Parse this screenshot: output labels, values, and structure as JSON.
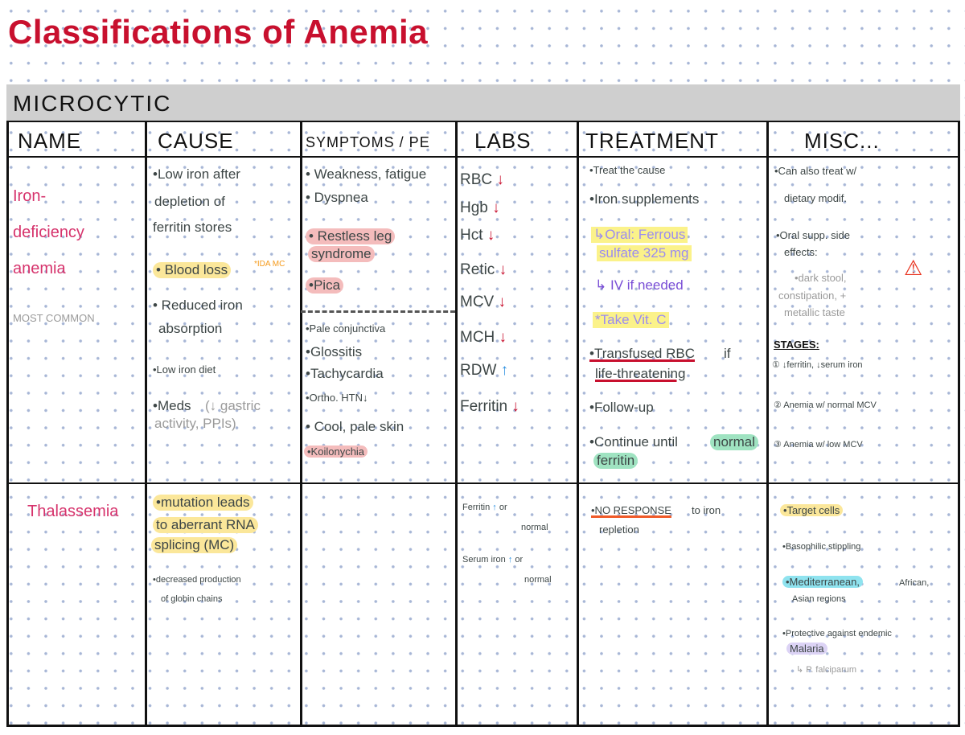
{
  "title": "Classifications of Anemia",
  "section": "MICROCYTIC",
  "headers": [
    "NAME",
    "CAUSE",
    "SYMPTOMS / PE",
    "LABS",
    "TREATMENT",
    "MISC..."
  ],
  "colors": {
    "title": "#c8102e",
    "name": "#d6336c",
    "down_arrow": "#c8102e",
    "up_arrow": "#2b8fe0",
    "dots": "#a7b6d6"
  },
  "rows": [
    {
      "name": [
        "Iron-",
        "deficiency",
        "anemia"
      ],
      "name_note": "MOST COMMON",
      "cause": [
        "•Low iron after",
        "depletion of",
        "ferritin stores",
        "• Blood loss",
        "*IDA MC",
        "• Reduced iron",
        "absorption",
        "•Low iron diet",
        "•Meds",
        "(↓ gastric",
        "activity, PPIs)"
      ],
      "symptoms": [
        "• Weakness, fatigue",
        "• Dyspnea",
        "• Restless leg",
        "syndrome",
        "•Pica",
        "•Pale conjunctiva",
        "•Glossitis",
        "•Tachycardia",
        "•Ortho. HTN↓",
        "• Cool, pale skin",
        "•Koilonychia"
      ],
      "labs": [
        {
          "name": "RBC",
          "trend": "down"
        },
        {
          "name": "Hgb",
          "trend": "down"
        },
        {
          "name": "Hct",
          "trend": "down"
        },
        {
          "name": "Retic",
          "trend": "down"
        },
        {
          "name": "MCV",
          "trend": "down"
        },
        {
          "name": "MCH",
          "trend": "down"
        },
        {
          "name": "RDW",
          "trend": "up"
        },
        {
          "name": "Ferritin",
          "trend": "down"
        }
      ],
      "treatment": [
        "•Treat the cause",
        "•Iron supplements",
        "↳Oral: Ferrous",
        "sulfate 325 mg",
        "↳ IV if needed",
        "*Take Vit. C",
        "•Transfused RBC",
        "if",
        "life-threatening",
        "•Follow-up",
        "•Continue until",
        "normal",
        "ferritin"
      ],
      "misc": [
        "•Can also treat w/",
        "dietary modif.",
        "•Oral supp. side",
        "effects:",
        "•dark stool,",
        "constipation, +",
        "metallic taste",
        "STAGES:",
        "① ↓ferritin, ↓serum iron",
        "② Anemia w/ normal MCV",
        "③ Anemia w/ low MCV"
      ],
      "warning_icon": "warning-triangle"
    },
    {
      "name": [
        "Thalassemia"
      ],
      "cause": [
        "•mutation leads",
        "to aberrant RNA",
        "splicing (MC)",
        "•decreased production",
        "of globin chains"
      ],
      "labs_lines": [
        {
          "name": "Ferritin",
          "trend": "up",
          "suffix": "or",
          "cont": "normal"
        },
        {
          "name": "Serum iron",
          "trend": "up",
          "suffix": "or",
          "cont": "normal"
        }
      ],
      "treatment": [
        "•NO RESPONSE",
        "to iron",
        "repletion"
      ],
      "misc": [
        "•Target cells",
        "•Basophilic stippling",
        "•Mediterranean,",
        "African,",
        "Asian regions",
        "•Protective against endemic",
        "Malaria",
        "↳ P. falciparum"
      ]
    }
  ]
}
